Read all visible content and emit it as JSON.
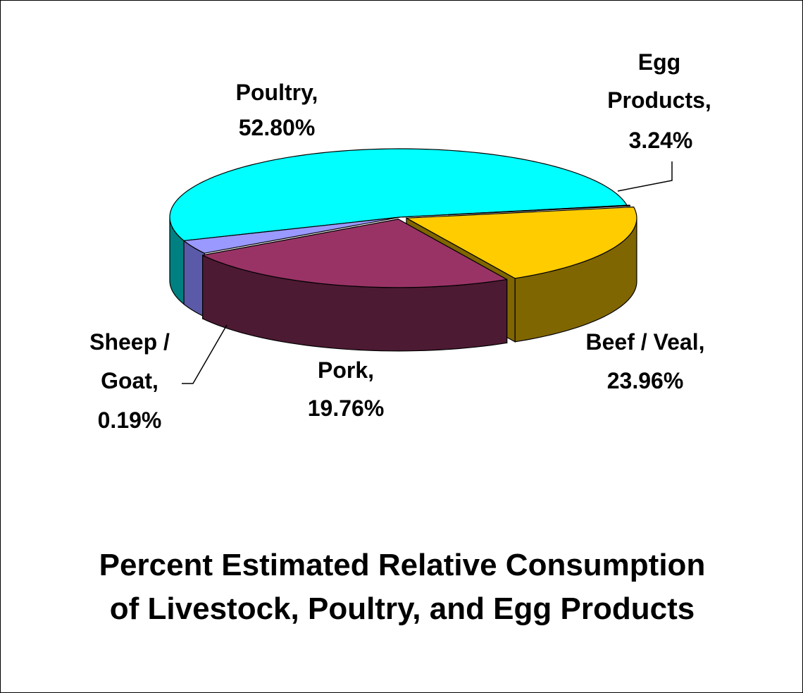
{
  "chart_data": {
    "type": "pie",
    "style": "3d-exploded",
    "title_lines": [
      "Percent Estimated Relative Consumption",
      "of Livestock, Poultry, and Egg Products"
    ],
    "legend": "none",
    "slices": [
      {
        "name": "Poultry,",
        "value_label": "52.80%",
        "value": 52.8,
        "color": "#00FFFF",
        "side_color": "#008080"
      },
      {
        "name": "Egg Products,",
        "name_lines": [
          "Egg",
          "Products,"
        ],
        "value_label": "3.24%",
        "value": 3.24,
        "color": "#9999FF",
        "side_color": "#5A5AA8"
      },
      {
        "name": "Beef / Veal,",
        "value_label": "23.96%",
        "value": 23.96,
        "color": "#993366",
        "side_color": "#4D1A33"
      },
      {
        "name": "Pork,",
        "value_label": "19.76%",
        "value": 19.76,
        "color": "#FFCC00",
        "side_color": "#806600"
      },
      {
        "name": "Sheep / Goat,",
        "name_lines": [
          "Sheep /",
          "Goat,"
        ],
        "value_label": "0.19%",
        "value": 0.19,
        "color": "#CCFFFF",
        "side_color": "#669999"
      }
    ]
  }
}
